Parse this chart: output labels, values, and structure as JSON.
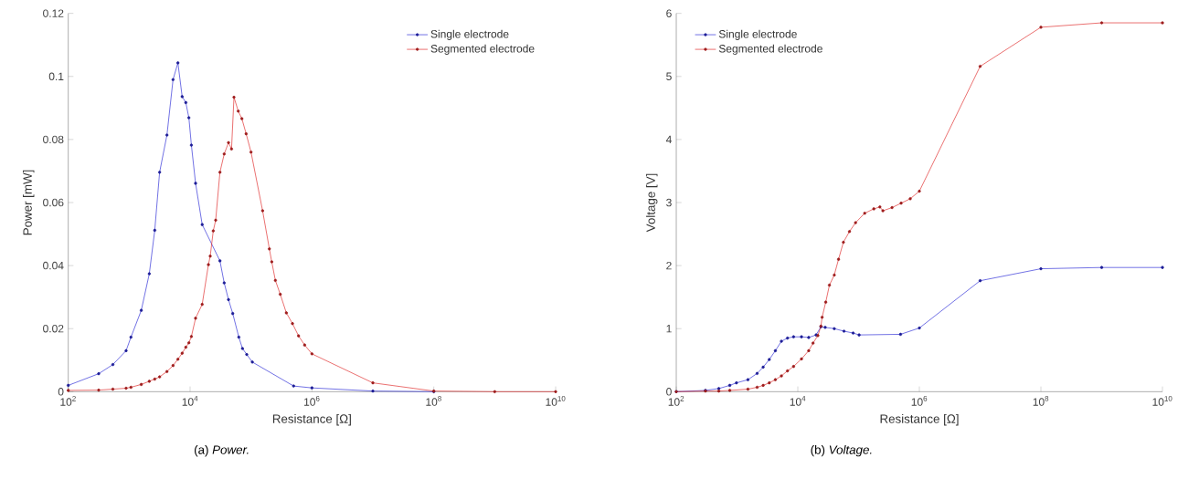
{
  "chart_data": [
    {
      "type": "line",
      "xlabel": "Resistance [Ω]",
      "ylabel": "Power [mW]",
      "log": "x",
      "marker": "circle",
      "legend": "top right",
      "grid": false,
      "xlim": [
        100,
        10000000000
      ],
      "ylim": [
        0,
        0.12
      ],
      "xticks": [
        {
          "value": 100,
          "label": "10$^{2}$"
        },
        {
          "value": 10000,
          "label": "10$^{4}$"
        },
        {
          "value": 1000000,
          "label": "10$^{6}$"
        },
        {
          "value": 100000000,
          "label": "10$^{8}$"
        },
        {
          "value": 10000000000,
          "label": "10$^{10}$"
        }
      ],
      "yticks": [
        0,
        0.02,
        0.04,
        0.06,
        0.08,
        0.1,
        0.12
      ],
      "annotations": [
        "(a) *Power.*"
      ],
      "series": [
        {
          "name": "Single electrode",
          "color": "#2a2ad6",
          "x": [
            100,
            316,
            540,
            890,
            1070,
            1580,
            2140,
            2630,
            3160,
            4170,
            5250,
            6310,
            7410,
            8510,
            9550,
            10500,
            12300,
            15800,
            30900,
            36300,
            42700,
            50100,
            63100,
            72400,
            85100,
            105000,
            500000,
            1000000,
            10000000,
            100000000
          ],
          "values": [
            0.002,
            0.0057,
            0.0086,
            0.013,
            0.0173,
            0.0258,
            0.0374,
            0.0512,
            0.0696,
            0.0814,
            0.099,
            0.1043,
            0.0936,
            0.0917,
            0.0869,
            0.0782,
            0.0661,
            0.053,
            0.0415,
            0.0345,
            0.0292,
            0.0248,
            0.0173,
            0.0137,
            0.0118,
            0.0094,
            0.0018,
            0.0012,
            0.0002,
            0
          ]
        },
        {
          "name": "Segmented electrode",
          "color": "#e02828",
          "x": [
            100,
            316,
            540,
            890,
            1070,
            1580,
            2140,
            2630,
            3160,
            4170,
            5250,
            6310,
            7410,
            8510,
            9550,
            10500,
            12300,
            15800,
            20000,
            21400,
            24000,
            26300,
            30900,
            36300,
            42700,
            47900,
            52500,
            61700,
            70800,
            83200,
            100000,
            155000,
            200000,
            219000,
            251000,
            302000,
            380000,
            479000,
            603000,
            759000,
            1000000,
            10000000,
            100000000,
            1000000000,
            10000000000
          ],
          "values": [
            0.0004,
            0.0005,
            0.0008,
            0.0011,
            0.0014,
            0.0023,
            0.0033,
            0.004,
            0.0047,
            0.0064,
            0.0083,
            0.0103,
            0.0122,
            0.0141,
            0.0155,
            0.0175,
            0.0233,
            0.0277,
            0.0403,
            0.043,
            0.051,
            0.0544,
            0.0696,
            0.0754,
            0.079,
            0.077,
            0.0934,
            0.089,
            0.0866,
            0.0818,
            0.076,
            0.0574,
            0.0453,
            0.0412,
            0.0353,
            0.0309,
            0.025,
            0.0216,
            0.0177,
            0.0148,
            0.012,
            0.0028,
            0.0002,
            0,
            0
          ]
        }
      ]
    },
    {
      "type": "line",
      "xlabel": "Resistance [Ω]",
      "ylabel": "Voltage [V]",
      "log": "x",
      "marker": "circle",
      "legend": "top left",
      "grid": false,
      "xlim": [
        100,
        10000000000
      ],
      "ylim": [
        0,
        6
      ],
      "xticks": [
        {
          "value": 100,
          "label": "10$^{2}$"
        },
        {
          "value": 10000,
          "label": "10$^{4}$"
        },
        {
          "value": 1000000,
          "label": "10$^{6}$"
        },
        {
          "value": 100000000,
          "label": "10$^{8}$"
        },
        {
          "value": 10000000000,
          "label": "10$^{10}$"
        }
      ],
      "yticks": [
        0,
        1,
        2,
        3,
        4,
        5,
        6
      ],
      "annotations": [
        "(b) *Voltage.*"
      ],
      "series": [
        {
          "name": "Single electrode",
          "color": "#2a2ad6",
          "x": [
            100,
            302,
            501,
            759,
            977,
            1510,
            2140,
            2690,
            3390,
            4270,
            5370,
            6760,
            8510,
            11500,
            15100,
            20000,
            24000,
            28200,
            39800,
            57500,
            81300,
            102000,
            490000,
            1000000,
            10000000,
            100000000,
            1000000000,
            10000000000
          ],
          "values": [
            0,
            0.02,
            0.05,
            0.1,
            0.14,
            0.19,
            0.29,
            0.39,
            0.51,
            0.65,
            0.8,
            0.85,
            0.87,
            0.87,
            0.86,
            0.9,
            1.03,
            1.02,
            1.0,
            0.96,
            0.93,
            0.9,
            0.91,
            1.01,
            1.76,
            1.95,
            1.97,
            1.97
          ]
        },
        {
          "name": "Segmented electrode",
          "color": "#e02828",
          "x": [
            100,
            302,
            501,
            759,
            1510,
            2140,
            2690,
            3390,
            4270,
            5370,
            6760,
            8510,
            11500,
            15100,
            17800,
            21400,
            24000,
            25100,
            28800,
            33100,
            39800,
            46800,
            56200,
            70800,
            89100,
            126000,
            178000,
            224000,
            251000,
            355000,
            501000,
            708000,
            1000000,
            10000000,
            100000000,
            1000000000,
            10000000000
          ],
          "values": [
            0,
            0.01,
            0.01,
            0.02,
            0.04,
            0.07,
            0.1,
            0.14,
            0.19,
            0.25,
            0.33,
            0.4,
            0.52,
            0.65,
            0.77,
            0.89,
            1.04,
            1.18,
            1.42,
            1.69,
            1.85,
            2.1,
            2.37,
            2.54,
            2.68,
            2.83,
            2.9,
            2.93,
            2.87,
            2.92,
            2.99,
            3.06,
            3.18,
            5.16,
            5.78,
            5.85,
            5.85
          ]
        }
      ]
    }
  ]
}
